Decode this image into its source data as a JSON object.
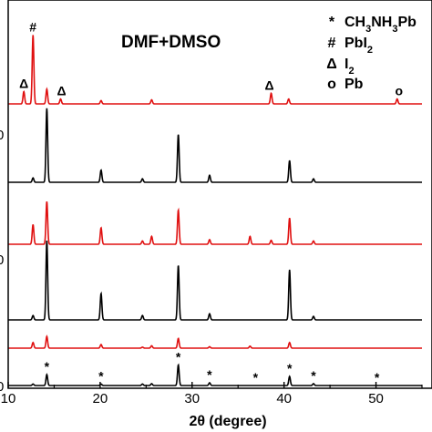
{
  "chart_data": {
    "type": "line",
    "title": "DMF+DMSO",
    "xlabel": "2θ (degree)",
    "ylabel": "",
    "xlim": [
      10,
      55
    ],
    "x_ticks": [
      10,
      20,
      30,
      40,
      50
    ],
    "x_tick_labels": [
      "10",
      "20",
      "30",
      "40",
      "50"
    ],
    "left_partial_labels": [
      "0",
      "0",
      "0"
    ],
    "grid": false,
    "legend_position": "top-right",
    "legend": [
      {
        "symbol": "*",
        "label_parts": [
          "CH",
          "3",
          "NH",
          "3",
          "Pb"
        ]
      },
      {
        "symbol": "#",
        "label_parts": [
          "PbI",
          "2"
        ]
      },
      {
        "symbol": "Δ",
        "label_parts": [
          "I",
          "2"
        ]
      },
      {
        "symbol": "o",
        "label_parts": [
          "Pb"
        ]
      }
    ],
    "colors": {
      "red": "#e01010",
      "black": "#000000",
      "frame": "#000000"
    },
    "series": [
      {
        "color": "red",
        "peaks": [
          {
            "x": 11.7,
            "h": 0.15
          },
          {
            "x": 12.7,
            "h": 0.84
          },
          {
            "x": 14.2,
            "h": 0.18
          },
          {
            "x": 15.7,
            "h": 0.06
          },
          {
            "x": 20.1,
            "h": 0.04
          },
          {
            "x": 25.6,
            "h": 0.05
          },
          {
            "x": 38.6,
            "h": 0.13
          },
          {
            "x": 40.5,
            "h": 0.06
          },
          {
            "x": 52.3,
            "h": 0.06
          }
        ],
        "markers": [
          {
            "x": 11.7,
            "symbol": "Δ"
          },
          {
            "x": 12.7,
            "symbol": "#"
          },
          {
            "x": 15.8,
            "symbol": "Δ"
          },
          {
            "x": 38.4,
            "symbol": "Δ"
          },
          {
            "x": 52.5,
            "symbol": "o"
          }
        ]
      },
      {
        "color": "black",
        "peaks": [
          {
            "x": 12.7,
            "h": 0.05
          },
          {
            "x": 14.2,
            "h": 0.85
          },
          {
            "x": 20.1,
            "h": 0.14
          },
          {
            "x": 24.6,
            "h": 0.04
          },
          {
            "x": 28.5,
            "h": 0.55
          },
          {
            "x": 31.9,
            "h": 0.08
          },
          {
            "x": 40.6,
            "h": 0.25
          },
          {
            "x": 43.2,
            "h": 0.04
          }
        ],
        "markers": []
      },
      {
        "color": "red",
        "peaks": [
          {
            "x": 12.7,
            "h": 0.3
          },
          {
            "x": 14.2,
            "h": 0.65
          },
          {
            "x": 20.1,
            "h": 0.25
          },
          {
            "x": 24.6,
            "h": 0.05
          },
          {
            "x": 25.6,
            "h": 0.12
          },
          {
            "x": 28.5,
            "h": 0.52
          },
          {
            "x": 31.9,
            "h": 0.07
          },
          {
            "x": 36.3,
            "h": 0.12
          },
          {
            "x": 38.6,
            "h": 0.06
          },
          {
            "x": 40.6,
            "h": 0.4
          },
          {
            "x": 43.2,
            "h": 0.05
          }
        ],
        "markers": []
      },
      {
        "color": "black",
        "peaks": [
          {
            "x": 12.7,
            "h": 0.05
          },
          {
            "x": 14.2,
            "h": 0.9
          },
          {
            "x": 20.1,
            "h": 0.3
          },
          {
            "x": 24.6,
            "h": 0.05
          },
          {
            "x": 28.5,
            "h": 0.62
          },
          {
            "x": 31.9,
            "h": 0.07
          },
          {
            "x": 40.6,
            "h": 0.57
          },
          {
            "x": 43.2,
            "h": 0.04
          }
        ],
        "markers": []
      },
      {
        "color": "red",
        "peaks": [
          {
            "x": 12.7,
            "h": 0.28
          },
          {
            "x": 14.2,
            "h": 0.58
          },
          {
            "x": 20.1,
            "h": 0.18
          },
          {
            "x": 24.6,
            "h": 0.05
          },
          {
            "x": 25.6,
            "h": 0.12
          },
          {
            "x": 28.5,
            "h": 0.48
          },
          {
            "x": 31.9,
            "h": 0.07
          },
          {
            "x": 36.3,
            "h": 0.1
          },
          {
            "x": 40.6,
            "h": 0.28
          }
        ],
        "markers": []
      },
      {
        "color": "black",
        "peaks": [
          {
            "x": 12.7,
            "h": 0.05
          },
          {
            "x": 14.2,
            "h": 0.36
          },
          {
            "x": 20.1,
            "h": 0.05
          },
          {
            "x": 24.6,
            "h": 0.05
          },
          {
            "x": 25.6,
            "h": 0.06
          },
          {
            "x": 28.5,
            "h": 0.68
          },
          {
            "x": 31.9,
            "h": 0.09
          },
          {
            "x": 40.6,
            "h": 0.3
          },
          {
            "x": 43.2,
            "h": 0.06
          }
        ],
        "markers": [
          {
            "x": 14.2,
            "symbol": "*"
          },
          {
            "x": 20.1,
            "symbol": "*"
          },
          {
            "x": 28.5,
            "symbol": "*"
          },
          {
            "x": 31.9,
            "symbol": "*"
          },
          {
            "x": 36.9,
            "symbol": "*"
          },
          {
            "x": 40.6,
            "symbol": "*"
          },
          {
            "x": 43.2,
            "symbol": "*"
          },
          {
            "x": 50.1,
            "symbol": "*"
          }
        ]
      }
    ]
  }
}
